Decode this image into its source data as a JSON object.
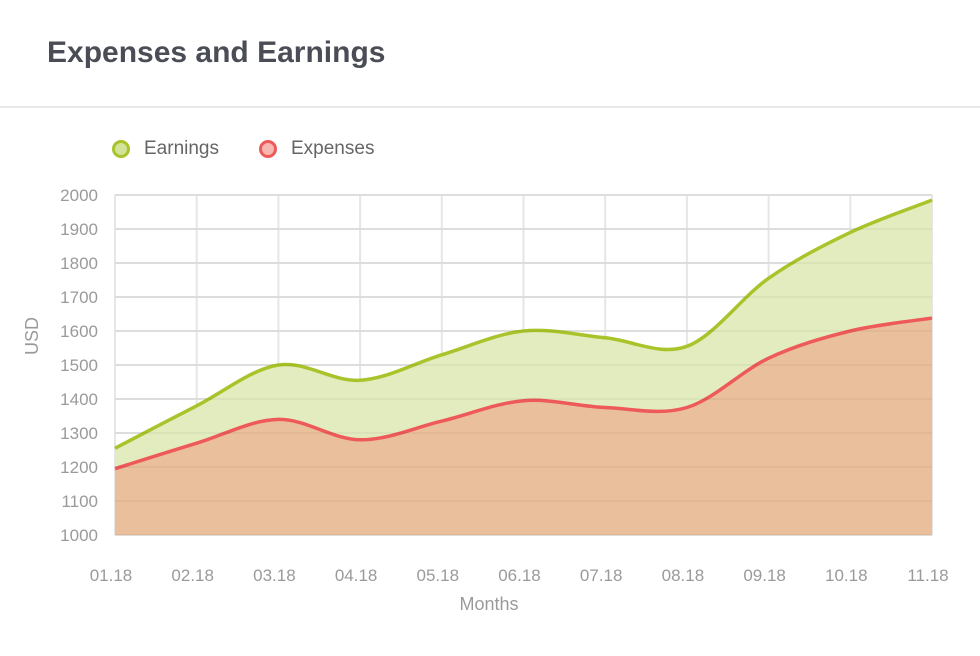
{
  "header": {
    "title": "Expenses and Earnings"
  },
  "legend": [
    {
      "label": "Earnings",
      "color": "#a8c42a",
      "fill": "#d3e399"
    },
    {
      "label": "Expenses",
      "color": "#ee5a5a",
      "fill": "#f6b8b0"
    }
  ],
  "colors": {
    "earnings_line": "#a8c42a",
    "earnings_area": "#e3ecbf",
    "expenses_line": "#ee5a5a",
    "expenses_area": "#eabf9c",
    "grid": "#e6e6e6"
  },
  "chart_data": {
    "type": "area",
    "categories": [
      "01.18",
      "02.18",
      "03.18",
      "04.18",
      "05.18",
      "06.18",
      "07.18",
      "08.18",
      "09.18",
      "10.18",
      "11.18"
    ],
    "series": [
      {
        "name": "Earnings",
        "values": [
          1255,
          1380,
          1500,
          1455,
          1530,
          1600,
          1580,
          1555,
          1755,
          1890,
          1985
        ]
      },
      {
        "name": "Expenses",
        "values": [
          1195,
          1270,
          1340,
          1280,
          1335,
          1395,
          1375,
          1375,
          1520,
          1600,
          1638
        ]
      }
    ],
    "title": "",
    "xlabel": "Months",
    "ylabel": "USD",
    "ylim": [
      1000,
      2000
    ],
    "yticks": [
      1000,
      1100,
      1200,
      1300,
      1400,
      1500,
      1600,
      1700,
      1800,
      1900,
      2000
    ],
    "grid": true,
    "legend_position": "top-left"
  }
}
